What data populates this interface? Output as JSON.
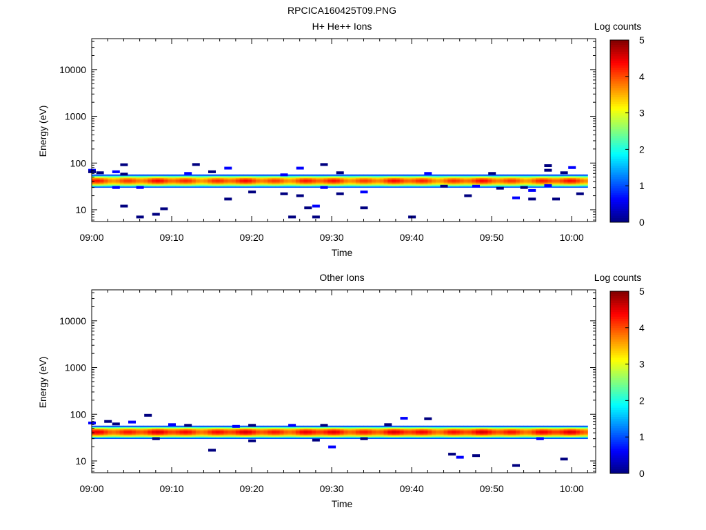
{
  "figure_title": "RPCICA160425T09.PNG",
  "colors": {
    "colormap": [
      "#000080",
      "#0000ff",
      "#0080ff",
      "#00ffff",
      "#80ff80",
      "#ffff00",
      "#ff8000",
      "#ff0000",
      "#800000"
    ],
    "axes": "#000000",
    "background": "#ffffff"
  },
  "chart_data": [
    {
      "type": "heatmap",
      "title": "H+ He++ Ions",
      "xlabel": "Time",
      "ylabel": "Energy (eV)",
      "yscale": "log",
      "ylim": [
        5.6,
        46000
      ],
      "yticks": [
        10,
        100,
        1000,
        10000
      ],
      "xlim": [
        "09:00",
        "10:03"
      ],
      "xticks": [
        "09:00",
        "09:10",
        "09:20",
        "09:30",
        "09:40",
        "09:50",
        "10:00"
      ],
      "colorbar": {
        "label": "Log counts",
        "range": [
          0,
          5
        ],
        "ticks": [
          0,
          1,
          2,
          3,
          4,
          5
        ]
      },
      "band": {
        "start": "09:00",
        "end": "10:02",
        "peak_energy_eV": 42,
        "min_energy_eV": 30,
        "max_energy_eV": 57,
        "peak_log_counts": 4.0
      },
      "sparse_points": [
        [
          "09:00",
          70
        ],
        [
          "09:00",
          65
        ],
        [
          "09:01",
          62
        ],
        [
          "09:03",
          65
        ],
        [
          "09:04",
          92
        ],
        [
          "09:04",
          58
        ],
        [
          "09:03",
          30
        ],
        [
          "09:04",
          12
        ],
        [
          "09:06",
          7
        ],
        [
          "09:06",
          30
        ],
        [
          "09:08",
          8
        ],
        [
          "09:09",
          10.5
        ],
        [
          "09:12",
          60
        ],
        [
          "09:13",
          93
        ],
        [
          "09:15",
          65
        ],
        [
          "09:17",
          78
        ],
        [
          "09:17",
          17
        ],
        [
          "09:20",
          24
        ],
        [
          "09:24",
          56
        ],
        [
          "09:24",
          22
        ],
        [
          "09:25",
          7
        ],
        [
          "09:26",
          78
        ],
        [
          "09:26",
          20
        ],
        [
          "09:27",
          11
        ],
        [
          "09:28",
          12
        ],
        [
          "09:28",
          7
        ],
        [
          "09:29",
          93
        ],
        [
          "09:29",
          30
        ],
        [
          "09:31",
          62
        ],
        [
          "09:31",
          22
        ],
        [
          "09:34",
          24
        ],
        [
          "09:34",
          11
        ],
        [
          "09:40",
          7
        ],
        [
          "09:42",
          60
        ],
        [
          "09:44",
          32
        ],
        [
          "09:47",
          20
        ],
        [
          "09:48",
          32
        ],
        [
          "09:50",
          60
        ],
        [
          "09:51",
          29
        ],
        [
          "09:53",
          18
        ],
        [
          "09:54",
          30
        ],
        [
          "09:55",
          17
        ],
        [
          "09:55",
          26
        ],
        [
          "09:57",
          88
        ],
        [
          "09:57",
          70
        ],
        [
          "09:57",
          33
        ],
        [
          "09:58",
          17
        ],
        [
          "09:59",
          62
        ],
        [
          "10:00",
          80
        ],
        [
          "10:01",
          22
        ]
      ]
    },
    {
      "type": "heatmap",
      "title": "Other Ions",
      "xlabel": "Time",
      "ylabel": "Energy (eV)",
      "yscale": "log",
      "ylim": [
        5.6,
        46000
      ],
      "yticks": [
        10,
        100,
        1000,
        10000
      ],
      "xlim": [
        "09:00",
        "10:03"
      ],
      "xticks": [
        "09:00",
        "09:10",
        "09:20",
        "09:30",
        "09:40",
        "09:50",
        "10:00"
      ],
      "colorbar": {
        "label": "Log counts",
        "range": [
          0,
          5
        ],
        "ticks": [
          0,
          1,
          2,
          3,
          4,
          5
        ]
      },
      "band": {
        "start": "09:00",
        "end": "10:02",
        "peak_energy_eV": 42,
        "min_energy_eV": 30,
        "max_energy_eV": 57,
        "peak_log_counts": 4.2
      },
      "sparse_points": [
        [
          "09:00",
          65
        ],
        [
          "09:02",
          70
        ],
        [
          "09:03",
          62
        ],
        [
          "09:05",
          68
        ],
        [
          "09:07",
          95
        ],
        [
          "09:08",
          30
        ],
        [
          "09:10",
          60
        ],
        [
          "09:12",
          58
        ],
        [
          "09:15",
          17
        ],
        [
          "09:18",
          55
        ],
        [
          "09:20",
          27
        ],
        [
          "09:20",
          58
        ],
        [
          "09:25",
          58
        ],
        [
          "09:28",
          28
        ],
        [
          "09:29",
          58
        ],
        [
          "09:30",
          20
        ],
        [
          "09:34",
          30
        ],
        [
          "09:37",
          60
        ],
        [
          "09:39",
          82
        ],
        [
          "09:42",
          80
        ],
        [
          "09:45",
          14
        ],
        [
          "09:46",
          12
        ],
        [
          "09:48",
          13
        ],
        [
          "09:53",
          8
        ],
        [
          "09:56",
          30
        ],
        [
          "09:59",
          11
        ]
      ]
    }
  ]
}
